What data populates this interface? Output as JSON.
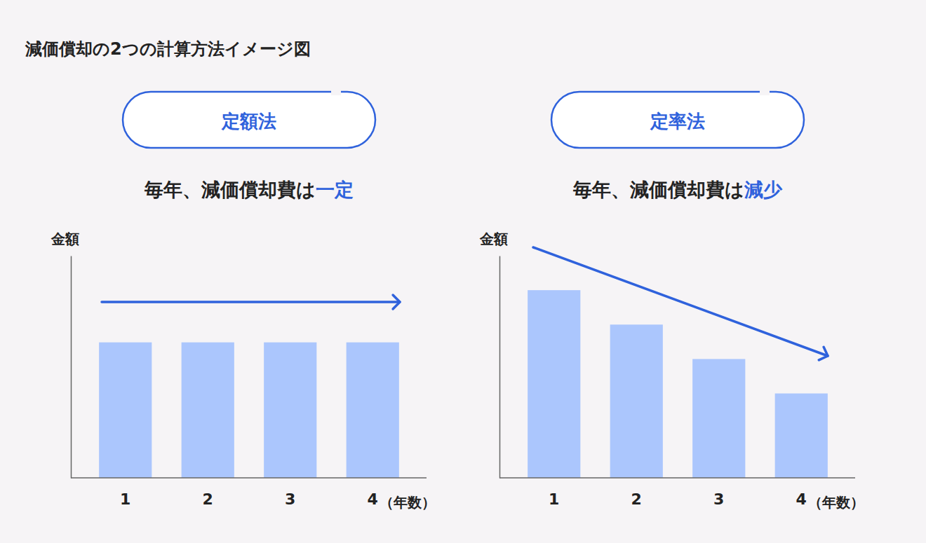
{
  "title": "減価償却の2つの計算方法イメージ図",
  "chart_data": [
    {
      "type": "bar",
      "title": "定額法",
      "subtitle": "毎年、減価償却費は",
      "subtitle_highlight": "一定",
      "y_label": "金額",
      "x_label": "（年数）",
      "categories": [
        "1",
        "2",
        "3",
        "4"
      ],
      "values": [
        61,
        61,
        61,
        61
      ],
      "color": "#abc6fd",
      "ylim": [
        0,
        100
      ],
      "tick_labels": "x",
      "grid": false
    },
    {
      "type": "bar",
      "title": "定率法",
      "subtitle": "毎年、減価償却費は",
      "subtitle_highlight": "減少",
      "y_label": "金額",
      "x_label": "（年数）",
      "categories": [
        "1",
        "2",
        "3",
        "4"
      ],
      "values": [
        84.5,
        69,
        53.5,
        38
      ],
      "color": "#abc6fd",
      "ylim": [
        0,
        100
      ],
      "tick_labels": "x",
      "grid": false
    }
  ]
}
